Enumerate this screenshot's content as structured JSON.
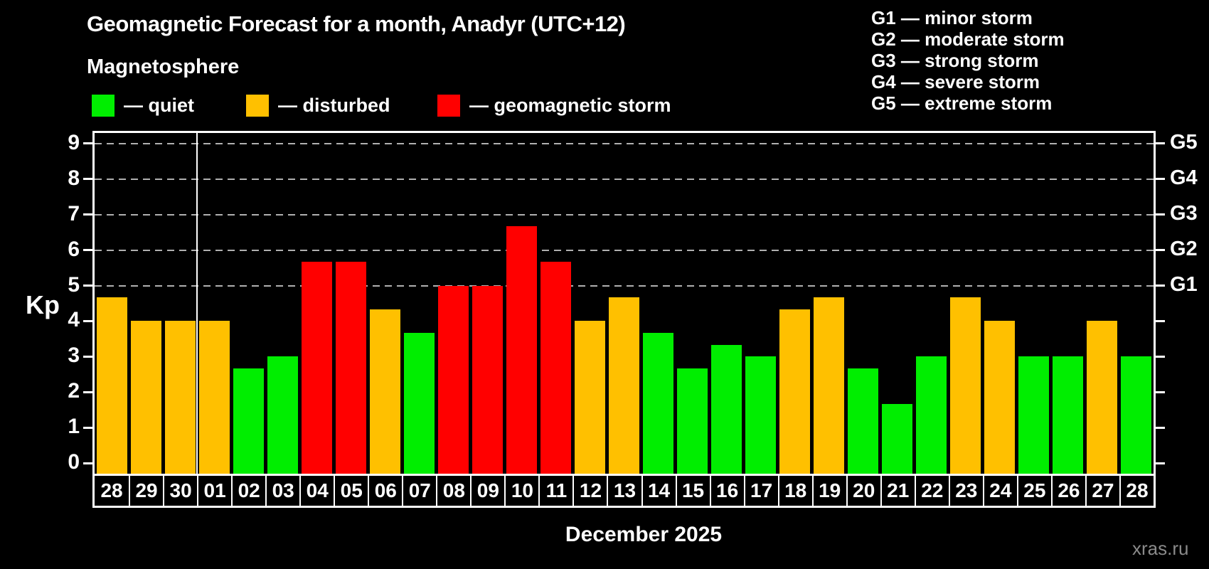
{
  "title": "Geomagnetic Forecast for a month, Anadyr (UTC+12)",
  "subtitle": "Magnetosphere",
  "legend": {
    "items": [
      {
        "key": "quiet",
        "label": "— quiet",
        "color": "#00ee00"
      },
      {
        "key": "disturbed",
        "label": "— disturbed",
        "color": "#ffc000"
      },
      {
        "key": "storm",
        "label": "— geomagnetic storm",
        "color": "#ff0000"
      }
    ]
  },
  "g_legend": {
    "lines": [
      "G1 — minor storm",
      "G2 — moderate storm",
      "G3 — strong storm",
      "G4 — severe storm",
      "G5 — extreme storm"
    ]
  },
  "watermark": "xras.ru",
  "chart_data": {
    "type": "bar",
    "title": "Geomagnetic Forecast for a month, Anadyr (UTC+12)",
    "subtitle": "Magnetosphere",
    "ylabel": "Kp",
    "xlabel": "December 2025",
    "ylim": [
      0,
      9
    ],
    "yticks": [
      0,
      1,
      2,
      3,
      4,
      5,
      6,
      7,
      8,
      9
    ],
    "gridlines_at": [
      5,
      6,
      7,
      8,
      9
    ],
    "grid": "dashed",
    "right_axis_labels": [
      {
        "kp": 5,
        "label": "G1"
      },
      {
        "kp": 6,
        "label": "G2"
      },
      {
        "kp": 7,
        "label": "G3"
      },
      {
        "kp": 8,
        "label": "G4"
      },
      {
        "kp": 9,
        "label": "G5"
      }
    ],
    "month_separator_index": 3,
    "categories": [
      "28",
      "29",
      "30",
      "01",
      "02",
      "03",
      "04",
      "05",
      "06",
      "07",
      "08",
      "09",
      "10",
      "11",
      "12",
      "13",
      "14",
      "15",
      "16",
      "17",
      "18",
      "19",
      "20",
      "21",
      "22",
      "23",
      "24",
      "25",
      "26",
      "27",
      "28"
    ],
    "values": [
      4.67,
      4,
      4,
      4,
      2.67,
      3,
      5.67,
      5.67,
      4.33,
      3.67,
      5,
      5,
      6.67,
      5.67,
      4,
      4.67,
      3.67,
      2.67,
      3.33,
      3,
      4.33,
      4.67,
      2.67,
      1.67,
      3,
      4.67,
      4,
      3,
      3,
      4,
      3
    ],
    "statuses": [
      "disturbed",
      "disturbed",
      "disturbed",
      "disturbed",
      "quiet",
      "quiet",
      "storm",
      "storm",
      "disturbed",
      "quiet",
      "storm",
      "storm",
      "storm",
      "storm",
      "disturbed",
      "disturbed",
      "quiet",
      "quiet",
      "quiet",
      "quiet",
      "disturbed",
      "disturbed",
      "quiet",
      "quiet",
      "quiet",
      "disturbed",
      "disturbed",
      "quiet",
      "quiet",
      "disturbed",
      "quiet"
    ],
    "status_colors": {
      "quiet": "#00ee00",
      "disturbed": "#ffc000",
      "storm": "#ff0000"
    }
  }
}
